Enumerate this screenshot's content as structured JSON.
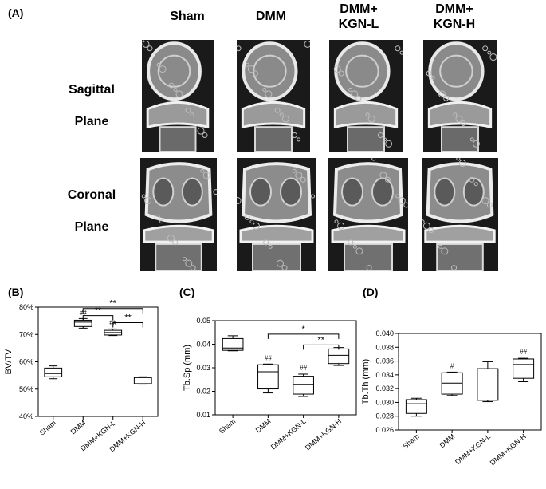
{
  "figure": {
    "panels": {
      "a": "(A)",
      "b": "(B)",
      "c": "(C)",
      "d": "(D)"
    },
    "columns": [
      "Sham",
      "DMM",
      "DMM+\nKGN-L",
      "DMM+\nKGN-H"
    ],
    "rows": [
      {
        "label_line1": "Sagittal",
        "label_line2": "Plane"
      },
      {
        "label_line1": "Coronal",
        "label_line2": "Plane"
      }
    ]
  },
  "chart_data": [
    {
      "type": "box",
      "panel": "(B)",
      "ylabel": "BV/TV",
      "ylim": [
        0.4,
        0.8
      ],
      "yticks": [
        0.4,
        0.5,
        0.6,
        0.7,
        0.8
      ],
      "yticklabels": [
        "40%",
        "50%",
        "60%",
        "70%",
        "80%"
      ],
      "categories": [
        "Sham",
        "DMM",
        "DMM+KGN-L",
        "DMM+KGN-H"
      ],
      "boxes": [
        {
          "min": 0.538,
          "q1": 0.545,
          "median": 0.557,
          "q3": 0.577,
          "max": 0.585
        },
        {
          "min": 0.723,
          "q1": 0.729,
          "median": 0.745,
          "q3": 0.752,
          "max": 0.758
        },
        {
          "min": 0.696,
          "q1": 0.698,
          "median": 0.707,
          "q3": 0.715,
          "max": 0.72
        },
        {
          "min": 0.518,
          "q1": 0.52,
          "median": 0.53,
          "q3": 0.542,
          "max": 0.545
        }
      ],
      "marks": [
        "",
        "##",
        "##",
        ""
      ],
      "brackets": [
        {
          "from": 1,
          "to": 3,
          "y": 0.795,
          "label": "**"
        },
        {
          "from": 1,
          "to": 2,
          "y": 0.769,
          "label": "**"
        },
        {
          "from": 2,
          "to": 3,
          "y": 0.743,
          "label": "**"
        }
      ]
    },
    {
      "type": "box",
      "panel": "(C)",
      "ylabel": "Tb.Sp (mm)",
      "ylim": [
        0.01,
        0.05
      ],
      "yticks": [
        0.01,
        0.02,
        0.03,
        0.04,
        0.05
      ],
      "yticklabels": [
        "0.01",
        "0.02",
        "0.03",
        "0.04",
        "0.05"
      ],
      "categories": [
        "Sham",
        "DMM",
        "DMM+KGN-L",
        "DMM+KGN-H"
      ],
      "boxes": [
        {
          "min": 0.0372,
          "q1": 0.0374,
          "median": 0.0384,
          "q3": 0.0424,
          "max": 0.0436
        },
        {
          "min": 0.0193,
          "q1": 0.021,
          "median": 0.0283,
          "q3": 0.0313,
          "max": 0.0316
        },
        {
          "min": 0.0178,
          "q1": 0.0188,
          "median": 0.0228,
          "q3": 0.0264,
          "max": 0.0273
        },
        {
          "min": 0.031,
          "q1": 0.0318,
          "median": 0.0353,
          "q3": 0.038,
          "max": 0.0386
        }
      ],
      "marks": [
        "",
        "##",
        "##",
        ""
      ],
      "brackets": [
        {
          "from": 1,
          "to": 3,
          "y": 0.0443,
          "label": "*"
        },
        {
          "from": 2,
          "to": 3,
          "y": 0.0397,
          "label": "**"
        }
      ]
    },
    {
      "type": "box",
      "panel": "(D)",
      "ylabel": "Tb.Th (mm)",
      "ylim": [
        0.026,
        0.04
      ],
      "yticks": [
        0.026,
        0.028,
        0.03,
        0.032,
        0.034,
        0.036,
        0.038,
        0.04
      ],
      "yticklabels": [
        "0.026",
        "0.028",
        "0.030",
        "0.032",
        "0.034",
        "0.036",
        "0.038",
        "0.040"
      ],
      "categories": [
        "Sham",
        "DMM",
        "DMM+KGN-L",
        "DMM+KGN-H"
      ],
      "boxes": [
        {
          "min": 0.028,
          "q1": 0.0284,
          "median": 0.0298,
          "q3": 0.0304,
          "max": 0.0306
        },
        {
          "min": 0.031,
          "q1": 0.0312,
          "median": 0.0328,
          "q3": 0.0343,
          "max": 0.0344
        },
        {
          "min": 0.0301,
          "q1": 0.0303,
          "median": 0.0315,
          "q3": 0.0349,
          "max": 0.0359
        },
        {
          "min": 0.033,
          "q1": 0.0335,
          "median": 0.0355,
          "q3": 0.0363,
          "max": 0.0364
        }
      ],
      "marks": [
        "",
        "#",
        "",
        "##"
      ],
      "brackets": []
    }
  ]
}
